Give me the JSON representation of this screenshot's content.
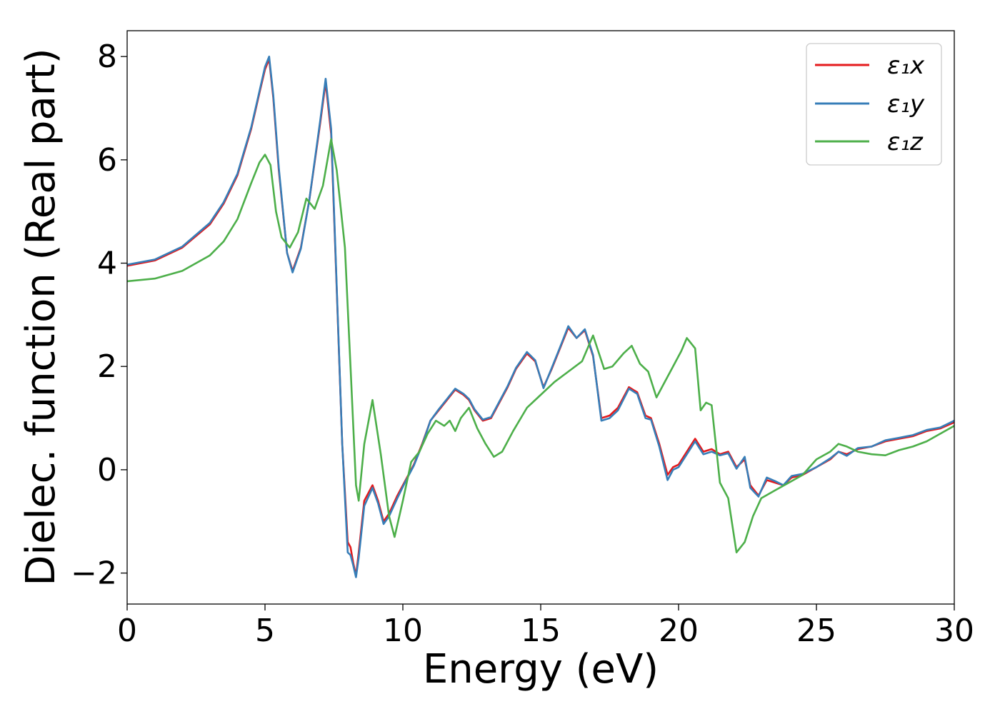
{
  "chart_data": {
    "type": "line",
    "xlabel": "Energy (eV)",
    "ylabel": "Dielec. function (Real part)",
    "xlim": [
      0,
      30
    ],
    "ylim": [
      -2.6,
      8.5
    ],
    "xticks": [
      0,
      5,
      10,
      15,
      20,
      25,
      30
    ],
    "xtick_labels": [
      "0",
      "5",
      "10",
      "15",
      "20",
      "25",
      "30"
    ],
    "yticks": [
      -2,
      0,
      2,
      4,
      6,
      8
    ],
    "ytick_labels": [
      "−2",
      "0",
      "2",
      "4",
      "6",
      "8"
    ],
    "grid": false,
    "legend_position": "top-right",
    "series": [
      {
        "name": "ε₁x",
        "color": "#e41a1c",
        "x": [
          0,
          1,
          2,
          3,
          3.5,
          4,
          4.5,
          4.8,
          5.0,
          5.15,
          5.3,
          5.5,
          5.8,
          6.0,
          6.3,
          6.6,
          7.0,
          7.2,
          7.4,
          7.6,
          7.8,
          8.0,
          8.1,
          8.2,
          8.3,
          8.4,
          8.6,
          8.9,
          9.1,
          9.3,
          9.5,
          9.8,
          10.1,
          10.4,
          10.7,
          11.0,
          11.3,
          11.6,
          11.9,
          12.2,
          12.4,
          12.6,
          12.9,
          13.2,
          13.5,
          13.8,
          14.1,
          14.5,
          14.8,
          15.1,
          15.4,
          15.7,
          16.0,
          16.3,
          16.6,
          16.9,
          17.2,
          17.5,
          17.8,
          18.2,
          18.5,
          18.8,
          19.0,
          19.3,
          19.6,
          19.8,
          20.0,
          20.3,
          20.6,
          20.9,
          21.2,
          21.5,
          21.8,
          22.1,
          22.4,
          22.6,
          22.9,
          23.2,
          23.5,
          23.8,
          24.1,
          24.5,
          25.0,
          25.5,
          25.8,
          26.1,
          26.5,
          27.0,
          27.5,
          28.0,
          28.5,
          29.0,
          29.5,
          30
        ],
        "y": [
          3.95,
          4.05,
          4.3,
          4.75,
          5.15,
          5.7,
          6.6,
          7.3,
          7.75,
          7.95,
          7.2,
          5.8,
          4.2,
          3.85,
          4.3,
          5.2,
          6.7,
          7.5,
          6.5,
          3.5,
          0.5,
          -1.4,
          -1.5,
          -1.8,
          -2.05,
          -1.6,
          -0.6,
          -0.3,
          -0.6,
          -1.0,
          -0.85,
          -0.5,
          -0.2,
          0.1,
          0.5,
          0.95,
          1.15,
          1.35,
          1.55,
          1.45,
          1.35,
          1.15,
          0.95,
          1.0,
          1.3,
          1.6,
          1.95,
          2.25,
          2.1,
          1.6,
          1.95,
          2.35,
          2.75,
          2.55,
          2.7,
          2.2,
          1.0,
          1.05,
          1.2,
          1.6,
          1.5,
          1.05,
          1.0,
          0.5,
          -0.1,
          0.05,
          0.1,
          0.35,
          0.6,
          0.35,
          0.4,
          0.3,
          0.35,
          0.05,
          0.2,
          -0.3,
          -0.5,
          -0.2,
          -0.25,
          -0.3,
          -0.15,
          -0.1,
          0.05,
          0.2,
          0.35,
          0.3,
          0.4,
          0.45,
          0.55,
          0.6,
          0.65,
          0.75,
          0.8,
          0.92
        ]
      },
      {
        "name": "ε₁y",
        "color": "#377eb8",
        "x": [
          0,
          1,
          2,
          3,
          3.5,
          4,
          4.5,
          4.8,
          5.0,
          5.15,
          5.3,
          5.5,
          5.8,
          6.0,
          6.3,
          6.6,
          7.0,
          7.2,
          7.4,
          7.6,
          7.8,
          8.0,
          8.1,
          8.2,
          8.3,
          8.4,
          8.6,
          8.9,
          9.1,
          9.3,
          9.5,
          9.8,
          10.1,
          10.4,
          10.7,
          11.0,
          11.3,
          11.6,
          11.9,
          12.2,
          12.4,
          12.6,
          12.9,
          13.2,
          13.5,
          13.8,
          14.1,
          14.5,
          14.8,
          15.1,
          15.4,
          15.7,
          16.0,
          16.3,
          16.6,
          16.9,
          17.2,
          17.5,
          17.8,
          18.2,
          18.5,
          18.8,
          19.0,
          19.3,
          19.6,
          19.8,
          20.0,
          20.3,
          20.6,
          20.9,
          21.2,
          21.5,
          21.8,
          22.1,
          22.4,
          22.6,
          22.9,
          23.2,
          23.5,
          23.8,
          24.1,
          24.5,
          25.0,
          25.5,
          25.8,
          26.1,
          26.5,
          27.0,
          27.5,
          28.0,
          28.5,
          29.0,
          29.5,
          30
        ],
        "y": [
          3.97,
          4.07,
          4.32,
          4.78,
          5.18,
          5.73,
          6.63,
          7.33,
          7.8,
          8.0,
          7.25,
          5.85,
          4.2,
          3.82,
          4.28,
          5.2,
          6.75,
          7.57,
          6.6,
          3.55,
          0.5,
          -1.6,
          -1.65,
          -1.85,
          -2.08,
          -1.7,
          -0.7,
          -0.35,
          -0.65,
          -1.05,
          -0.9,
          -0.55,
          -0.22,
          0.08,
          0.48,
          0.95,
          1.17,
          1.37,
          1.57,
          1.47,
          1.37,
          1.17,
          0.97,
          1.02,
          1.32,
          1.62,
          1.97,
          2.28,
          2.12,
          1.58,
          1.97,
          2.37,
          2.78,
          2.55,
          2.72,
          2.22,
          0.95,
          1.0,
          1.15,
          1.57,
          1.47,
          1.0,
          0.97,
          0.45,
          -0.2,
          0.0,
          0.05,
          0.3,
          0.55,
          0.3,
          0.35,
          0.28,
          0.32,
          0.02,
          0.25,
          -0.35,
          -0.52,
          -0.15,
          -0.22,
          -0.3,
          -0.12,
          -0.08,
          0.05,
          0.22,
          0.35,
          0.27,
          0.42,
          0.45,
          0.57,
          0.62,
          0.67,
          0.77,
          0.82,
          0.95
        ]
      },
      {
        "name": "ε₁z",
        "color": "#4daf4a",
        "x": [
          0,
          1,
          2,
          3,
          3.5,
          4,
          4.5,
          4.8,
          5.0,
          5.2,
          5.4,
          5.6,
          5.9,
          6.2,
          6.5,
          6.8,
          7.1,
          7.4,
          7.6,
          7.9,
          8.1,
          8.3,
          8.4,
          8.6,
          8.9,
          9.2,
          9.5,
          9.7,
          10.0,
          10.3,
          10.6,
          10.9,
          11.2,
          11.5,
          11.7,
          11.9,
          12.1,
          12.4,
          12.7,
          13.0,
          13.3,
          13.6,
          14.0,
          14.5,
          15.0,
          15.5,
          16.0,
          16.5,
          16.9,
          17.3,
          17.6,
          18.0,
          18.3,
          18.6,
          18.9,
          19.2,
          19.5,
          19.8,
          20.1,
          20.3,
          20.6,
          20.8,
          21.0,
          21.2,
          21.5,
          21.8,
          22.1,
          22.4,
          22.7,
          23.0,
          23.5,
          24.0,
          24.5,
          25.0,
          25.5,
          25.8,
          26.1,
          26.5,
          27.0,
          27.5,
          28.0,
          28.5,
          29.0,
          29.5,
          30
        ],
        "y": [
          3.65,
          3.7,
          3.85,
          4.15,
          4.42,
          4.85,
          5.55,
          5.95,
          6.1,
          5.9,
          5.0,
          4.5,
          4.3,
          4.6,
          5.25,
          5.05,
          5.5,
          6.4,
          5.8,
          4.3,
          2.0,
          -0.3,
          -0.6,
          0.5,
          1.35,
          0.3,
          -0.9,
          -1.3,
          -0.6,
          0.15,
          0.35,
          0.7,
          0.95,
          0.85,
          0.95,
          0.75,
          1.0,
          1.2,
          0.8,
          0.5,
          0.25,
          0.35,
          0.75,
          1.2,
          1.45,
          1.7,
          1.9,
          2.1,
          2.6,
          1.95,
          2.0,
          2.25,
          2.4,
          2.05,
          1.9,
          1.4,
          1.7,
          2.0,
          2.3,
          2.55,
          2.35,
          1.15,
          1.3,
          1.25,
          -0.25,
          -0.55,
          -1.6,
          -1.4,
          -0.9,
          -0.55,
          -0.4,
          -0.25,
          -0.1,
          0.2,
          0.35,
          0.5,
          0.45,
          0.35,
          0.3,
          0.28,
          0.38,
          0.45,
          0.55,
          0.7,
          0.85
        ]
      }
    ]
  }
}
